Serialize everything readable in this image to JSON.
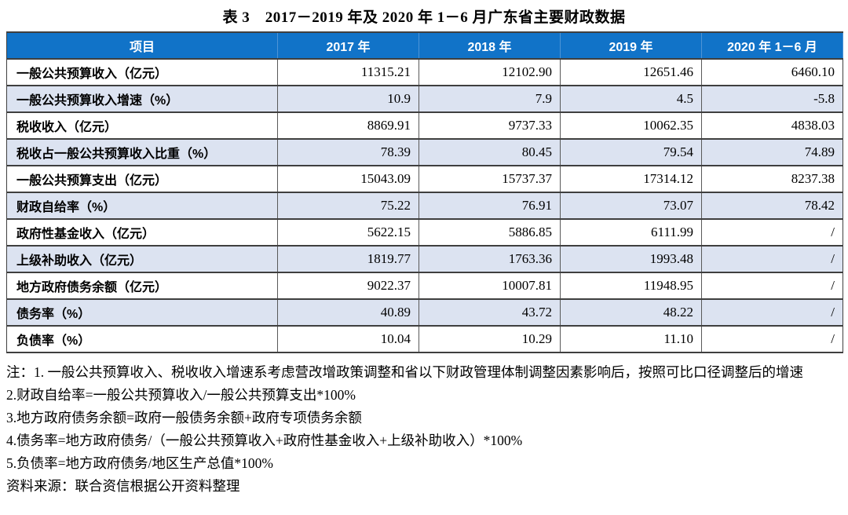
{
  "title": "表 3　2017－2019 年及 2020 年 1－6 月广东省主要财政数据",
  "table": {
    "headers": [
      "项目",
      "2017 年",
      "2018 年",
      "2019 年",
      "2020 年 1－6 月"
    ],
    "rows": [
      {
        "label": "一般公共预算收入（亿元）",
        "values": [
          "11315.21",
          "12102.90",
          "12651.46",
          "6460.10"
        ]
      },
      {
        "label": "一般公共预算收入增速（%）",
        "values": [
          "10.9",
          "7.9",
          "4.5",
          "-5.8"
        ]
      },
      {
        "label": "税收收入（亿元）",
        "values": [
          "8869.91",
          "9737.33",
          "10062.35",
          "4838.03"
        ]
      },
      {
        "label": "税收占一般公共预算收入比重（%）",
        "values": [
          "78.39",
          "80.45",
          "79.54",
          "74.89"
        ]
      },
      {
        "label": "一般公共预算支出（亿元）",
        "values": [
          "15043.09",
          "15737.37",
          "17314.12",
          "8237.38"
        ]
      },
      {
        "label": "财政自给率（%）",
        "values": [
          "75.22",
          "76.91",
          "73.07",
          "78.42"
        ]
      },
      {
        "label": "政府性基金收入（亿元）",
        "values": [
          "5622.15",
          "5886.85",
          "6111.99",
          "/"
        ]
      },
      {
        "label": "上级补助收入（亿元）",
        "values": [
          "1819.77",
          "1763.36",
          "1993.48",
          "/"
        ]
      },
      {
        "label": "地方政府债务余额（亿元）",
        "values": [
          "9022.37",
          "10007.81",
          "11948.95",
          "/"
        ]
      },
      {
        "label": "债务率（%）",
        "values": [
          "40.89",
          "43.72",
          "48.22",
          "/"
        ]
      },
      {
        "label": "负债率（%）",
        "values": [
          "10.04",
          "10.29",
          "11.10",
          "/"
        ]
      }
    ]
  },
  "notes": {
    "note1": "注：1. 一般公共预算收入、税收收入增速系考虑营改增政策调整和省以下财政管理体制调整因素影响后，按照可比口径调整后的增速",
    "note2": "2.财政自给率=一般公共预算收入/一般公共预算支出*100%",
    "note3": "3.地方政府债务余额=政府一般债务余额+政府专项债务余额",
    "note4": "4.债务率=地方政府债务/（一般公共预算收入+政府性基金收入+上级补助收入）*100%",
    "note5": "5.负债率=地方政府债务/地区生产总值*100%",
    "source": "资料来源：联合资信根据公开资料整理"
  },
  "colors": {
    "header_bg": "#1173c8",
    "header_text": "#ffffff",
    "band_row_bg": "#dce3f1",
    "border_dark": "#3f3f3f",
    "border_light": "#595959",
    "header_divider": "#4e94d6"
  }
}
